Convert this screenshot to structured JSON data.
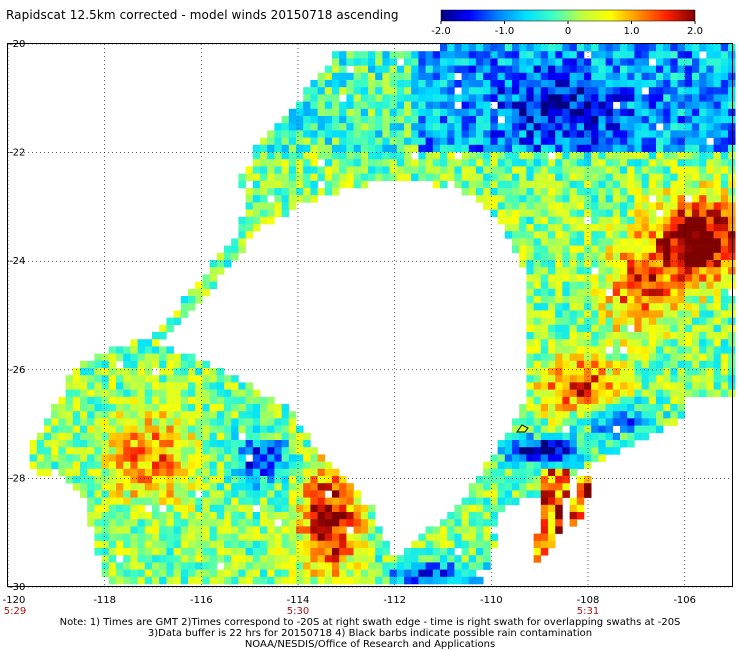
{
  "title": "Rapidscat 12.5km corrected - model winds 20150718 ascending",
  "colorbar": {
    "ticks": [
      "-2.0",
      "-1.0",
      "0",
      "1.0",
      "2.0"
    ],
    "colors": [
      "#000080",
      "#0000ff",
      "#0080ff",
      "#00e0ff",
      "#40ffc0",
      "#c0ff40",
      "#ffff00",
      "#ff9000",
      "#ff2000",
      "#800000"
    ],
    "min": -2.0,
    "max": 2.0
  },
  "map": {
    "lat_labels": [
      "-20",
      "-22",
      "-24",
      "-26",
      "-28",
      "-30"
    ],
    "lon_labels": [
      "-120",
      "-118",
      "-116",
      "-114",
      "-112",
      "-110",
      "-108",
      "-106"
    ],
    "time_labels": [
      "5:29",
      "5:30",
      "5:31"
    ],
    "lon_range": [
      -120,
      -105
    ],
    "lat_range": [
      -30,
      -20
    ]
  },
  "notes": {
    "line1": "Note: 1) Times are GMT 2)Times correspond to -20S at right swath edge - time is right swath for overlapping swaths at -20S",
    "line2": "3)Data buffer is 22 hrs for 20150718 4) Black barbs indicate possible rain contamination",
    "line3": "NOAA/NESDIS/Office of Research and Applications"
  }
}
